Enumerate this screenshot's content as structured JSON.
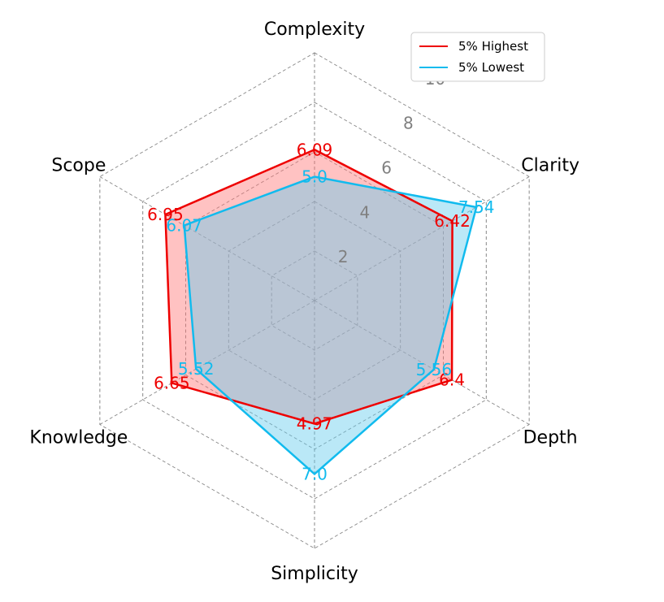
{
  "chart_data": {
    "type": "radar",
    "axes": [
      "Complexity",
      "Clarity",
      "Depth",
      "Simplicity",
      "Knowledge",
      "Scope"
    ],
    "rmax": 10,
    "ticks": [
      2,
      4,
      6,
      8,
      10
    ],
    "tick_labels": [
      "2",
      "4",
      "6",
      "8",
      "10"
    ],
    "grid": true,
    "legend_position": "top-right",
    "series": [
      {
        "name": "5% Highest",
        "color": "#ee0000",
        "fill": "#ff7777",
        "values": [
          6.09,
          6.42,
          6.4,
          4.97,
          6.65,
          6.95
        ],
        "value_labels": [
          "6.09",
          "6.42",
          "6.4",
          "4.97",
          "6.65",
          "6.95"
        ]
      },
      {
        "name": "5% Lowest",
        "color": "#11bbee",
        "fill": "#66ccee",
        "values": [
          5.0,
          7.54,
          5.56,
          7.0,
          5.52,
          6.07
        ],
        "value_labels": [
          "5.0",
          "7.54",
          "5.56",
          "7.0",
          "5.52",
          "6.07"
        ]
      }
    ]
  }
}
